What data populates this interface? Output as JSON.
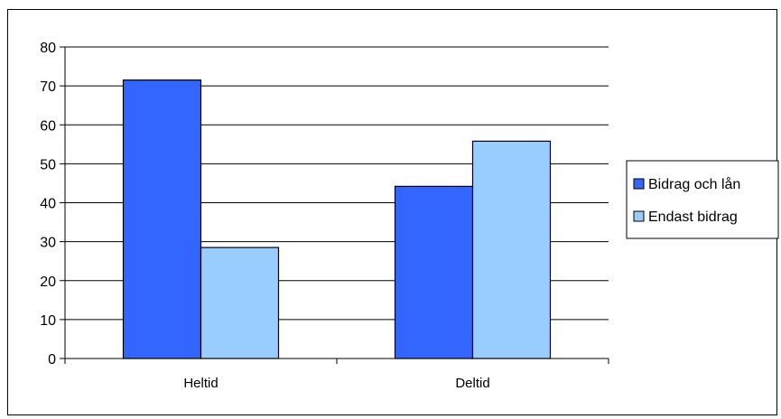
{
  "chart_data": {
    "type": "bar",
    "categories": [
      "Heltid",
      "Deltid"
    ],
    "series": [
      {
        "name": "Bidrag och lån",
        "values": [
          71.5,
          44.2
        ],
        "color": "#3366ff"
      },
      {
        "name": "Endast bidrag",
        "values": [
          28.5,
          55.8
        ],
        "color": "#99ccff"
      }
    ],
    "ylim": [
      0,
      80
    ],
    "yticks": [
      0,
      10,
      20,
      30,
      40,
      50,
      60,
      70,
      80
    ],
    "ytick_labels": [
      "0",
      "10",
      "20",
      "30",
      "40",
      "50",
      "60",
      "70",
      "80"
    ],
    "grid": true,
    "legend_position": "right",
    "title": "",
    "xlabel": "",
    "ylabel": ""
  }
}
